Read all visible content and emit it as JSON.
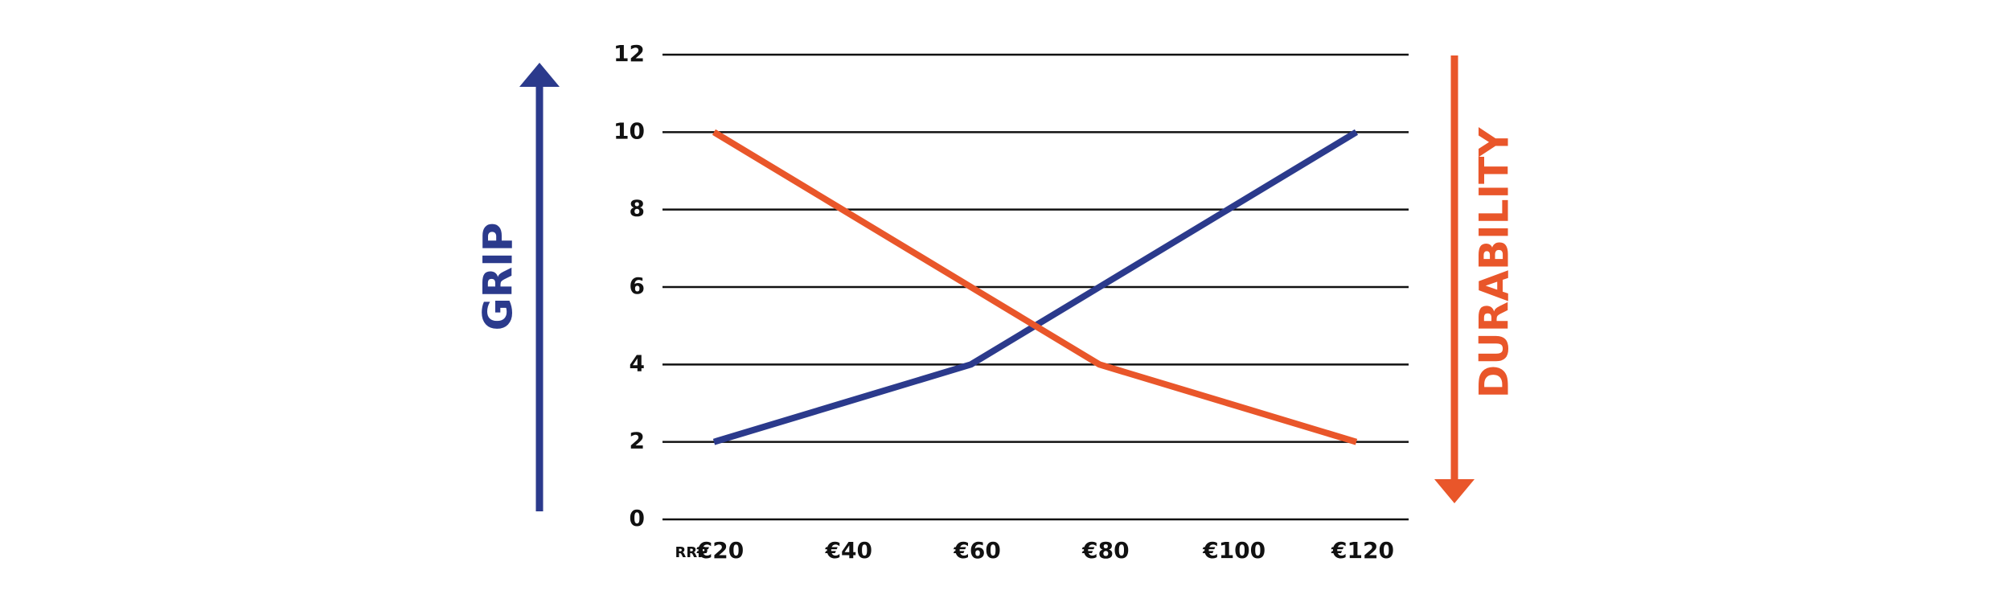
{
  "chart_data": {
    "type": "line",
    "x_label": "RRP",
    "categories": [
      "€20",
      "€40",
      "€60",
      "€80",
      "€100",
      "€120"
    ],
    "series": [
      {
        "name": "GRIP",
        "color": "#2b3a8c",
        "values": [
          2,
          3,
          4,
          6,
          8,
          10
        ],
        "arrow": "up",
        "side": "left"
      },
      {
        "name": "DURABILITY",
        "color": "#e9562a",
        "values": [
          10,
          8,
          6,
          4,
          3,
          2
        ],
        "arrow": "down",
        "side": "right"
      }
    ],
    "ylim": [
      0,
      12
    ],
    "yticks": [
      0,
      2,
      4,
      6,
      8,
      10,
      12
    ],
    "grid": true
  }
}
